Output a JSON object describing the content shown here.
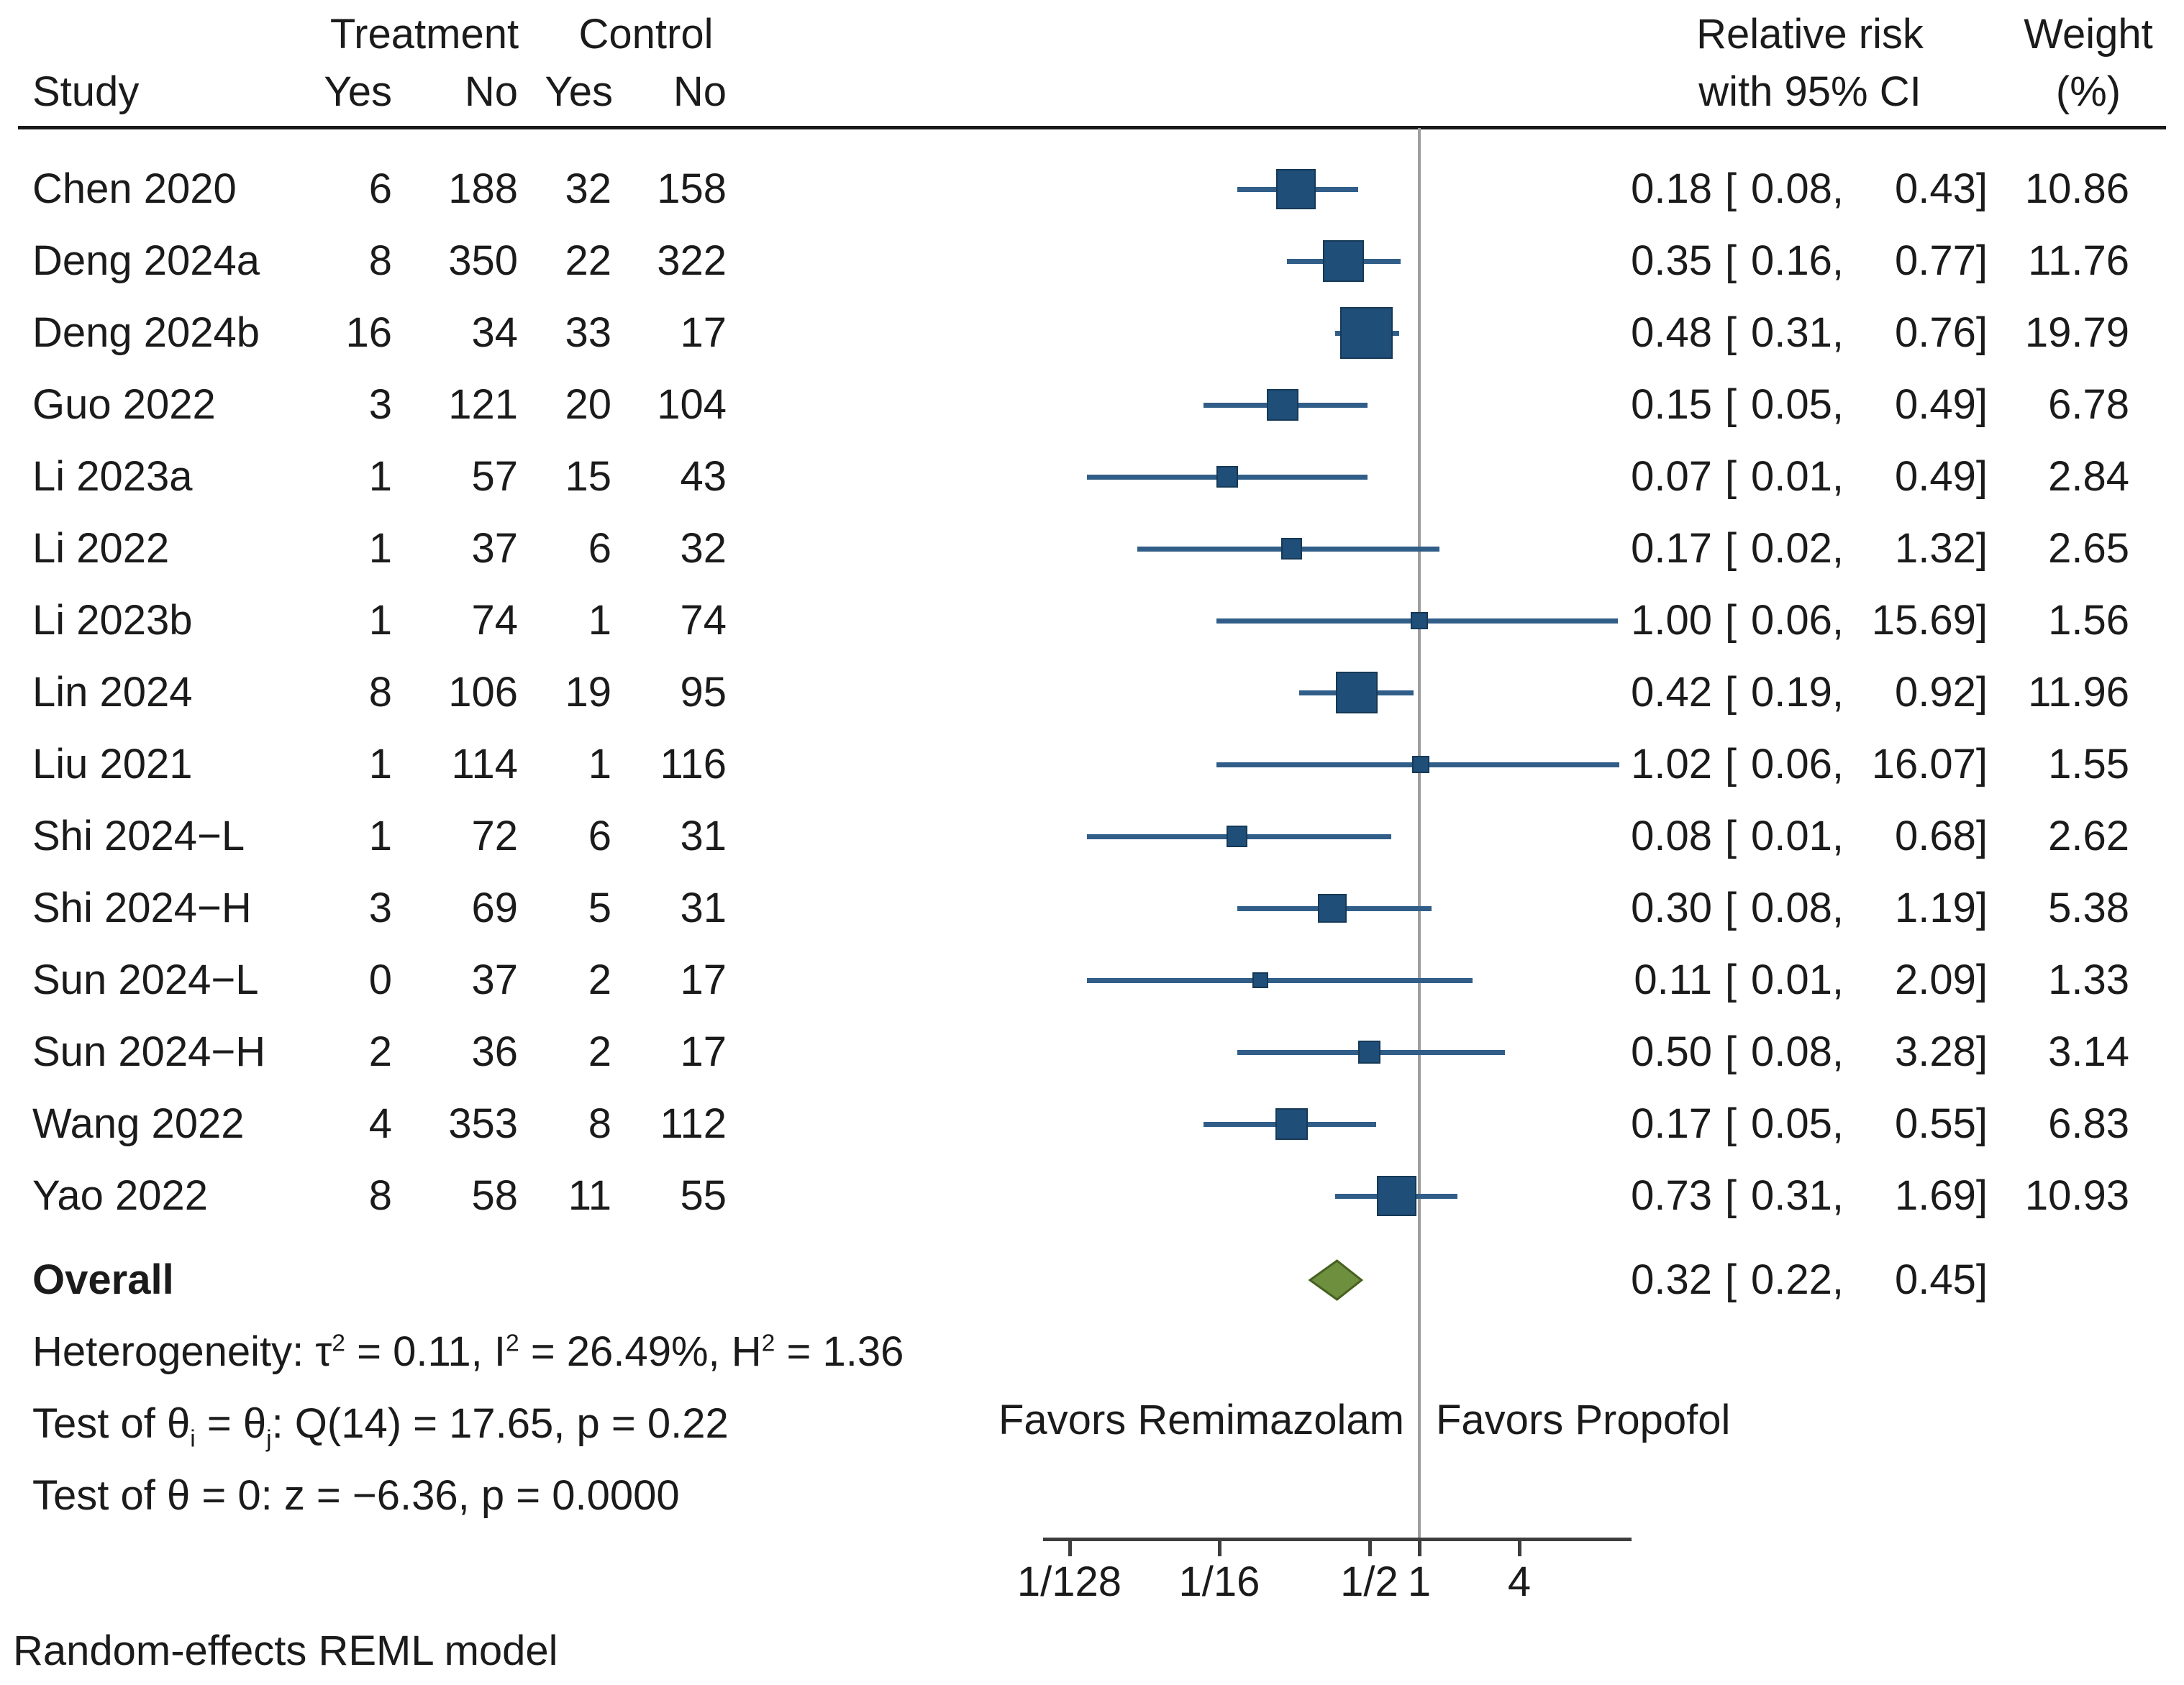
{
  "header": {
    "study": "Study",
    "treatment": "Treatment",
    "control": "Control",
    "yes": "Yes",
    "no": "No",
    "rr_line1": "Relative risk",
    "rr_line2": "with 95% CI",
    "weight_line1": "Weight",
    "weight_line2": "(%)"
  },
  "fmt": {
    "open": "[",
    "comma": ",",
    "close": "]",
    "bracket_lead": " [ "
  },
  "favors": {
    "left": "Favors Remimazolam",
    "right": "Favors Propofol"
  },
  "overall_label": "Overall",
  "stats": {
    "heterogeneity": [
      {
        "t": "Heterogeneity: τ"
      },
      {
        "sup": "2"
      },
      {
        "t": " = 0.11, I"
      },
      {
        "sup": "2"
      },
      {
        "t": " = 26.49%, H"
      },
      {
        "sup": "2"
      },
      {
        "t": " = 1.36"
      }
    ],
    "test_q": [
      {
        "t": "Test of θ"
      },
      {
        "sub": "i"
      },
      {
        "t": " = θ"
      },
      {
        "sub": "j"
      },
      {
        "t": ": Q(14) = 17.65, p = 0.22"
      }
    ],
    "test_z": [
      {
        "t": "Test of θ = 0: z = −6.36, p = 0.0000"
      }
    ]
  },
  "footnote": "Random-effects REML model",
  "colors": {
    "square": "#1f4e79",
    "square_edge": "#163956",
    "ci_line": "#315e88",
    "diamond_fill": "#6d8f3e",
    "diamond_edge": "#46611f",
    "ref_line": "#9e9e9e",
    "axis": "#3d3d3d",
    "text": "#1b1b1b"
  },
  "chart_data": {
    "type": "scatter",
    "subtype": "forest-plot",
    "x_scale": "log2",
    "ref_line_value": 1,
    "x_ticks": [
      {
        "label": "1/128",
        "value": 0.0078125
      },
      {
        "label": "1/16",
        "value": 0.0625
      },
      {
        "label": "1/2",
        "value": 0.5
      },
      {
        "label": "1",
        "value": 1
      },
      {
        "label": "4",
        "value": 4
      }
    ],
    "rows": [
      {
        "study": "Chen 2020",
        "t_yes": "6",
        "t_no": "188",
        "c_yes": "32",
        "c_no": "158",
        "rr": 0.18,
        "ci_low": 0.08,
        "ci_high": 0.43,
        "rr_s": "0.18",
        "low_s": "0.08",
        "high_s": "0.43",
        "weight": 10.86,
        "weight_s": "10.86"
      },
      {
        "study": "Deng 2024a",
        "t_yes": "8",
        "t_no": "350",
        "c_yes": "22",
        "c_no": "322",
        "rr": 0.35,
        "ci_low": 0.16,
        "ci_high": 0.77,
        "rr_s": "0.35",
        "low_s": "0.16",
        "high_s": "0.77",
        "weight": 11.76,
        "weight_s": "11.76"
      },
      {
        "study": "Deng 2024b",
        "t_yes": "16",
        "t_no": "34",
        "c_yes": "33",
        "c_no": "17",
        "rr": 0.48,
        "ci_low": 0.31,
        "ci_high": 0.76,
        "rr_s": "0.48",
        "low_s": "0.31",
        "high_s": "0.76",
        "weight": 19.79,
        "weight_s": "19.79"
      },
      {
        "study": "Guo 2022",
        "t_yes": "3",
        "t_no": "121",
        "c_yes": "20",
        "c_no": "104",
        "rr": 0.15,
        "ci_low": 0.05,
        "ci_high": 0.49,
        "rr_s": "0.15",
        "low_s": "0.05",
        "high_s": "0.49",
        "weight": 6.78,
        "weight_s": "6.78"
      },
      {
        "study": "Li 2023a",
        "t_yes": "1",
        "t_no": "57",
        "c_yes": "15",
        "c_no": "43",
        "rr": 0.07,
        "ci_low": 0.01,
        "ci_high": 0.49,
        "rr_s": "0.07",
        "low_s": "0.01",
        "high_s": "0.49",
        "weight": 2.84,
        "weight_s": "2.84"
      },
      {
        "study": "Li 2022",
        "t_yes": "1",
        "t_no": "37",
        "c_yes": "6",
        "c_no": "32",
        "rr": 0.17,
        "ci_low": 0.02,
        "ci_high": 1.32,
        "rr_s": "0.17",
        "low_s": "0.02",
        "high_s": "1.32",
        "weight": 2.65,
        "weight_s": "2.65"
      },
      {
        "study": "Li 2023b",
        "t_yes": "1",
        "t_no": "74",
        "c_yes": "1",
        "c_no": "74",
        "rr": 1.0,
        "ci_low": 0.06,
        "ci_high": 15.69,
        "rr_s": "1.00",
        "low_s": "0.06",
        "high_s": "15.69",
        "weight": 1.56,
        "weight_s": "1.56"
      },
      {
        "study": "Lin 2024",
        "t_yes": "8",
        "t_no": "106",
        "c_yes": "19",
        "c_no": "95",
        "rr": 0.42,
        "ci_low": 0.19,
        "ci_high": 0.92,
        "rr_s": "0.42",
        "low_s": "0.19",
        "high_s": "0.92",
        "weight": 11.96,
        "weight_s": "11.96"
      },
      {
        "study": "Liu 2021",
        "t_yes": "1",
        "t_no": "114",
        "c_yes": "1",
        "c_no": "116",
        "rr": 1.02,
        "ci_low": 0.06,
        "ci_high": 16.07,
        "rr_s": "1.02",
        "low_s": "0.06",
        "high_s": "16.07",
        "weight": 1.55,
        "weight_s": "1.55"
      },
      {
        "study": "Shi 2024−L",
        "t_yes": "1",
        "t_no": "72",
        "c_yes": "6",
        "c_no": "31",
        "rr": 0.08,
        "ci_low": 0.01,
        "ci_high": 0.68,
        "rr_s": "0.08",
        "low_s": "0.01",
        "high_s": "0.68",
        "weight": 2.62,
        "weight_s": "2.62"
      },
      {
        "study": "Shi 2024−H",
        "t_yes": "3",
        "t_no": "69",
        "c_yes": "5",
        "c_no": "31",
        "rr": 0.3,
        "ci_low": 0.08,
        "ci_high": 1.19,
        "rr_s": "0.30",
        "low_s": "0.08",
        "high_s": "1.19",
        "weight": 5.38,
        "weight_s": "5.38"
      },
      {
        "study": "Sun 2024−L",
        "t_yes": "0",
        "t_no": "37",
        "c_yes": "2",
        "c_no": "17",
        "rr": 0.11,
        "ci_low": 0.01,
        "ci_high": 2.09,
        "rr_s": "0.11",
        "low_s": "0.01",
        "high_s": "2.09",
        "weight": 1.33,
        "weight_s": "1.33"
      },
      {
        "study": "Sun 2024−H",
        "t_yes": "2",
        "t_no": "36",
        "c_yes": "2",
        "c_no": "17",
        "rr": 0.5,
        "ci_low": 0.08,
        "ci_high": 3.28,
        "rr_s": "0.50",
        "low_s": "0.08",
        "high_s": "3.28",
        "weight": 3.14,
        "weight_s": "3.14"
      },
      {
        "study": "Wang 2022",
        "t_yes": "4",
        "t_no": "353",
        "c_yes": "8",
        "c_no": "112",
        "rr": 0.17,
        "ci_low": 0.05,
        "ci_high": 0.55,
        "rr_s": "0.17",
        "low_s": "0.05",
        "high_s": "0.55",
        "weight": 6.83,
        "weight_s": "6.83"
      },
      {
        "study": "Yao 2022",
        "t_yes": "8",
        "t_no": "58",
        "c_yes": "11",
        "c_no": "55",
        "rr": 0.73,
        "ci_low": 0.31,
        "ci_high": 1.69,
        "rr_s": "0.73",
        "low_s": "0.31",
        "high_s": "1.69",
        "weight": 10.93,
        "weight_s": "10.93"
      }
    ],
    "overall": {
      "rr": 0.32,
      "ci_low": 0.22,
      "ci_high": 0.45,
      "rr_s": "0.32",
      "low_s": "0.22",
      "high_s": "0.45"
    }
  }
}
